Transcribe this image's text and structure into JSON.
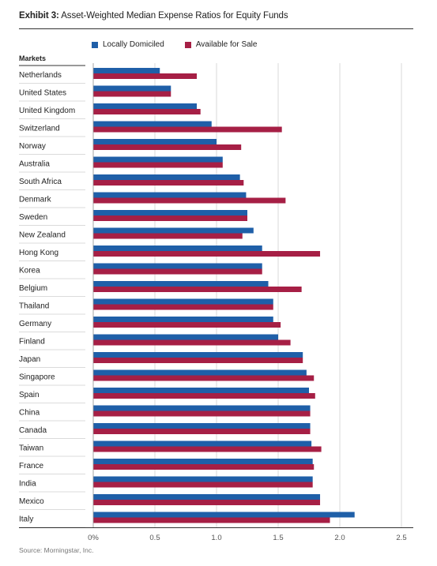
{
  "title": {
    "exhibit": "Exhibit 3:",
    "text": "Asset-Weighted Median Expense Ratios for Equity Funds"
  },
  "source": "Source: Morningstar, Inc.",
  "colors": {
    "locally_domiciled": "#1f5fa8",
    "available_for_sale": "#a61f45",
    "gridline": "#d9d9d9",
    "rule": "#333333"
  },
  "chart_data": {
    "type": "bar",
    "orientation": "horizontal",
    "category_header": "Markets",
    "categories": [
      "Netherlands",
      "United States",
      "United Kingdom",
      "Switzerland",
      "Norway",
      "Australia",
      "South Africa",
      "Denmark",
      "Sweden",
      "New Zealand",
      "Hong Kong",
      "Korea",
      "Belgium",
      "Thailand",
      "Germany",
      "Finland",
      "Japan",
      "Singapore",
      "Spain",
      "China",
      "Canada",
      "Taiwan",
      "France",
      "India",
      "Mexico",
      "Italy"
    ],
    "series": [
      {
        "name": "Locally Domiciled",
        "values": [
          0.54,
          0.63,
          0.84,
          0.96,
          1.0,
          1.05,
          1.19,
          1.24,
          1.25,
          1.3,
          1.37,
          1.37,
          1.42,
          1.46,
          1.46,
          1.5,
          1.7,
          1.73,
          1.75,
          1.76,
          1.76,
          1.77,
          1.78,
          1.78,
          1.84,
          2.12
        ]
      },
      {
        "name": "Available for Sale",
        "values": [
          0.84,
          0.63,
          0.87,
          1.53,
          1.2,
          1.05,
          1.22,
          1.56,
          1.25,
          1.21,
          1.84,
          1.37,
          1.69,
          1.46,
          1.52,
          1.6,
          1.7,
          1.79,
          1.8,
          1.76,
          1.76,
          1.85,
          1.79,
          1.78,
          1.84,
          1.92
        ]
      }
    ],
    "xticks": [
      "0%",
      "0.5",
      "1.0",
      "1.5",
      "2.0",
      "2.5"
    ],
    "xtick_values": [
      0,
      0.5,
      1.0,
      1.5,
      2.0,
      2.5
    ],
    "xlim": [
      0,
      2.5
    ],
    "legend_position": "top",
    "grid": true
  }
}
